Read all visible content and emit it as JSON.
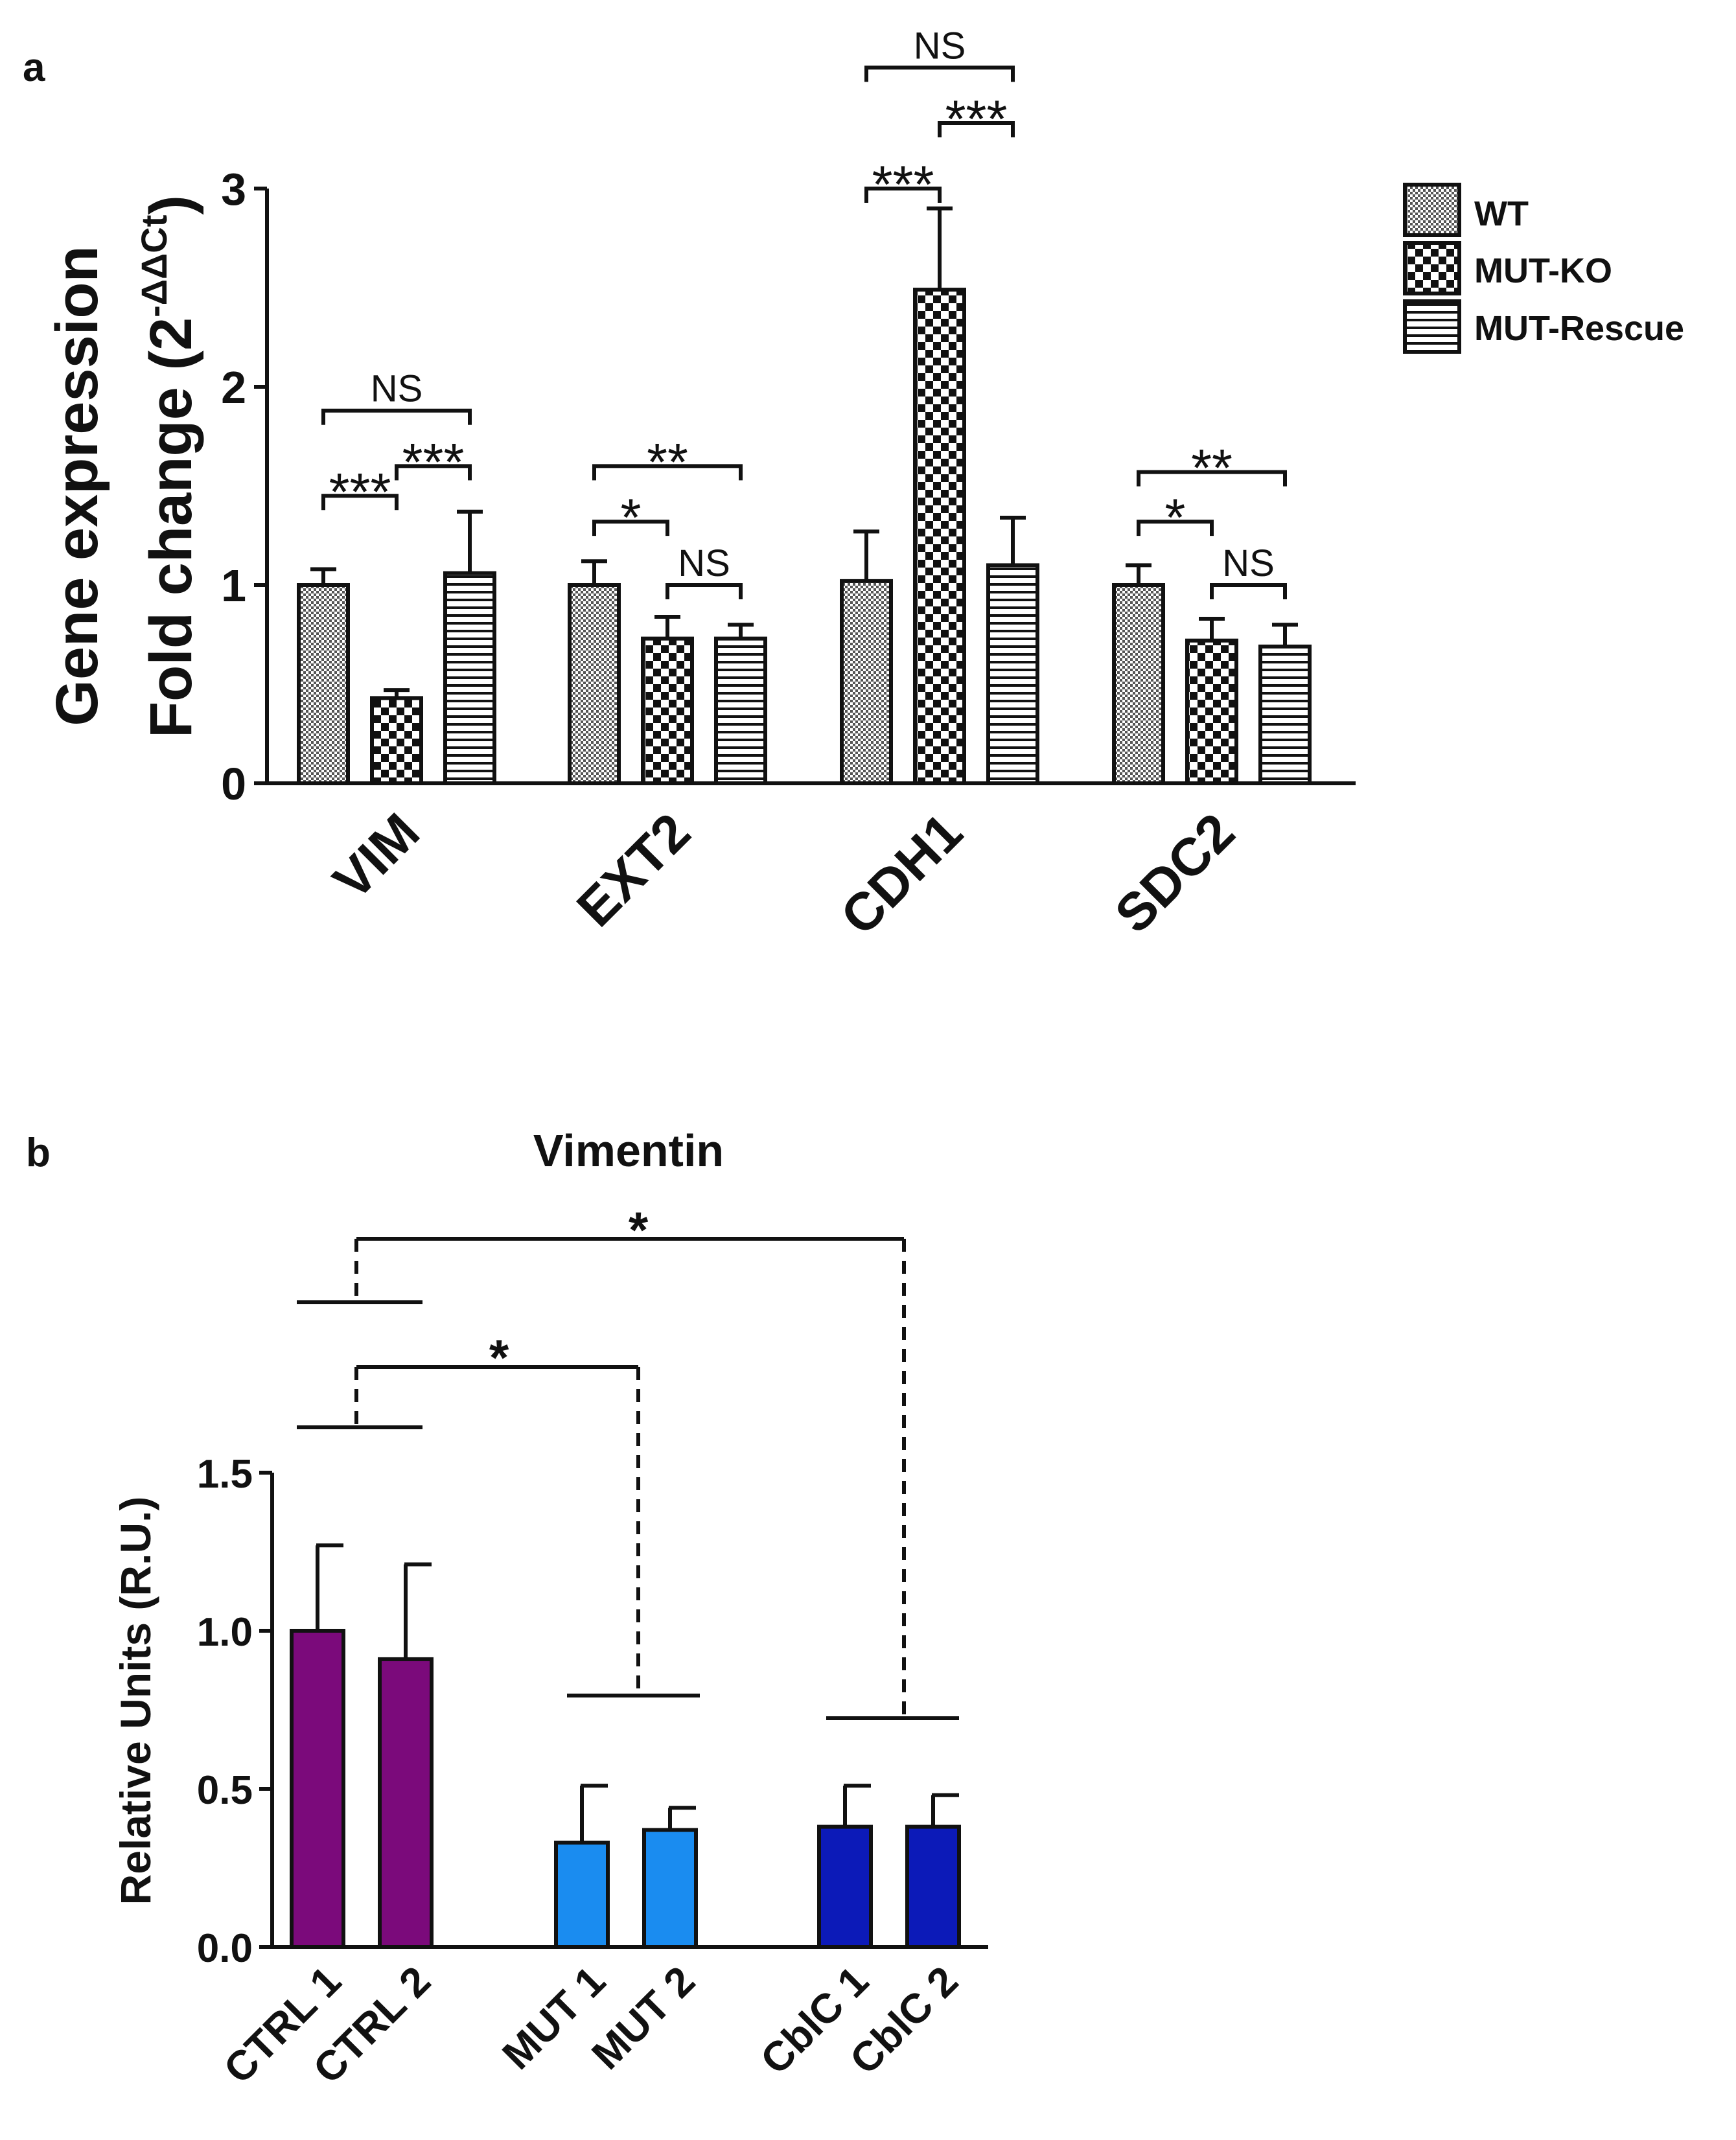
{
  "chart_data": [
    {
      "panel_label": "a",
      "type": "bar",
      "title": "",
      "ylabel_line1": "Gene expression",
      "ylabel_line2": "Fold change (2",
      "ylabel_sup": "-ΔΔCt",
      "ylabel_close": ")",
      "ylim": [
        0,
        3
      ],
      "yticks": [
        "0",
        "1",
        "2",
        "3"
      ],
      "categories": [
        "VIM",
        "EXT2",
        "CDH1",
        "SDC2"
      ],
      "series": [
        {
          "name": "WT",
          "pattern": "fine-check",
          "values": [
            1.0,
            1.0,
            1.02,
            1.0
          ],
          "errors": [
            0.08,
            0.12,
            0.25,
            0.1
          ]
        },
        {
          "name": "MUT-KO",
          "pattern": "checker",
          "values": [
            0.43,
            0.73,
            2.49,
            0.72
          ],
          "errors": [
            0.04,
            0.11,
            0.41,
            0.11
          ]
        },
        {
          "name": "MUT-Rescue",
          "pattern": "horizontal-lines",
          "values": [
            1.06,
            0.73,
            1.1,
            0.69
          ],
          "errors": [
            0.31,
            0.07,
            0.24,
            0.11
          ]
        }
      ],
      "annotations": [
        {
          "category": 0,
          "from": 0,
          "to": 1,
          "label": "***",
          "y": 1.45
        },
        {
          "category": 0,
          "from": 1,
          "to": 2,
          "label": "***",
          "y": 1.6
        },
        {
          "category": 0,
          "from": 0,
          "to": 2,
          "label": "NS",
          "y": 1.88
        },
        {
          "category": 1,
          "from": 0,
          "to": 1,
          "label": "*",
          "y": 1.32
        },
        {
          "category": 1,
          "from": 1,
          "to": 2,
          "label": "NS",
          "y": 1.0
        },
        {
          "category": 1,
          "from": 0,
          "to": 2,
          "label": "**",
          "y": 1.6
        },
        {
          "category": 2,
          "from": 0,
          "to": 1,
          "label": "***",
          "y": 3.0
        },
        {
          "category": 2,
          "from": 1,
          "to": 2,
          "label": "***",
          "y": 3.33
        },
        {
          "category": 2,
          "from": 0,
          "to": 2,
          "label": "NS",
          "y": 3.61
        },
        {
          "category": 3,
          "from": 0,
          "to": 1,
          "label": "*",
          "y": 1.32
        },
        {
          "category": 3,
          "from": 1,
          "to": 2,
          "label": "NS",
          "y": 1.0
        },
        {
          "category": 3,
          "from": 0,
          "to": 2,
          "label": "**",
          "y": 1.57
        }
      ],
      "legend": {
        "position": "top-right",
        "entries": [
          "WT",
          "MUT-KO",
          "MUT-Rescue"
        ]
      }
    },
    {
      "panel_label": "b",
      "type": "bar",
      "title": "Vimentin",
      "ylabel": "Relative Units (R.U.)",
      "ylim": [
        0,
        1.5
      ],
      "yticks": [
        "0.0",
        "0.5",
        "1.0",
        "1.5"
      ],
      "categories": [
        "CTRL 1",
        "CTRL 2",
        "MUT 1",
        "MUT 2",
        "CblC 1",
        "CblC 2"
      ],
      "values": [
        1.0,
        0.91,
        0.33,
        0.37,
        0.38,
        0.38
      ],
      "errors": [
        0.27,
        0.3,
        0.18,
        0.07,
        0.13,
        0.1
      ],
      "colors": [
        "#7b0a7b",
        "#7b0a7b",
        "#1a8cf0",
        "#1a8cf0",
        "#0c1ab8",
        "#0c1ab8"
      ],
      "annotations": [
        {
          "from_group": "CTRL",
          "to_group": "MUT",
          "label": "*"
        },
        {
          "from_group": "CTRL",
          "to_group": "CblC",
          "label": "*"
        }
      ]
    }
  ]
}
